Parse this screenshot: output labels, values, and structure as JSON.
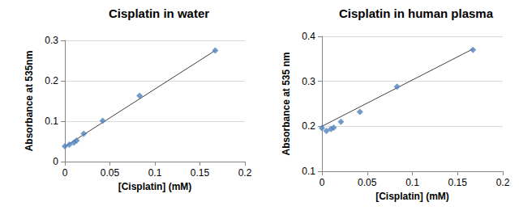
{
  "chart_data": [
    {
      "type": "scatter",
      "title": "Cisplatin in water",
      "x_label": "[Cisplatin] (mM)",
      "y_label": "Absorbance at 535nm",
      "xlim": [
        0,
        0.2
      ],
      "xticks": [
        0,
        0.05,
        0.1,
        0.15,
        0.2
      ],
      "ylim": [
        0,
        0.3
      ],
      "yticks": [
        0,
        0.1,
        0.2,
        0.3
      ],
      "grid": true,
      "series": [
        {
          "type": "scatter",
          "color": "#4f81bd",
          "marker": "diamond",
          "x": [
            0,
            0.005,
            0.01,
            0.013,
            0.021,
            0.042,
            0.083,
            0.167
          ],
          "values": [
            0.038,
            0.042,
            0.047,
            0.052,
            0.069,
            0.101,
            0.163,
            0.275
          ]
        },
        {
          "type": "line",
          "color": "#404040",
          "line_style": "solid",
          "x": [
            0,
            0.167
          ],
          "values": [
            0.037,
            0.275
          ]
        }
      ]
    },
    {
      "type": "scatter",
      "title": "Cisplatin in human plasma",
      "x_label": "[Cisplatin] (mM)",
      "y_label": "Absorbance at 535 nm",
      "xlim": [
        0,
        0.2
      ],
      "xticks": [
        0,
        0.05,
        0.1,
        0.15,
        0.2
      ],
      "ylim": [
        0.1,
        0.4
      ],
      "yticks": [
        0.1,
        0.2,
        0.3,
        0.4
      ],
      "grid": true,
      "series": [
        {
          "type": "scatter",
          "color": "#4f81bd",
          "marker": "diamond",
          "x": [
            0,
            0.005,
            0.01,
            0.013,
            0.021,
            0.042,
            0.083,
            0.167
          ],
          "values": [
            0.196,
            0.19,
            0.194,
            0.197,
            0.21,
            0.232,
            0.288,
            0.37
          ]
        },
        {
          "type": "line",
          "color": "#404040",
          "line_style": "solid",
          "x": [
            0,
            0.167
          ],
          "values": [
            0.2,
            0.372
          ]
        }
      ]
    }
  ]
}
